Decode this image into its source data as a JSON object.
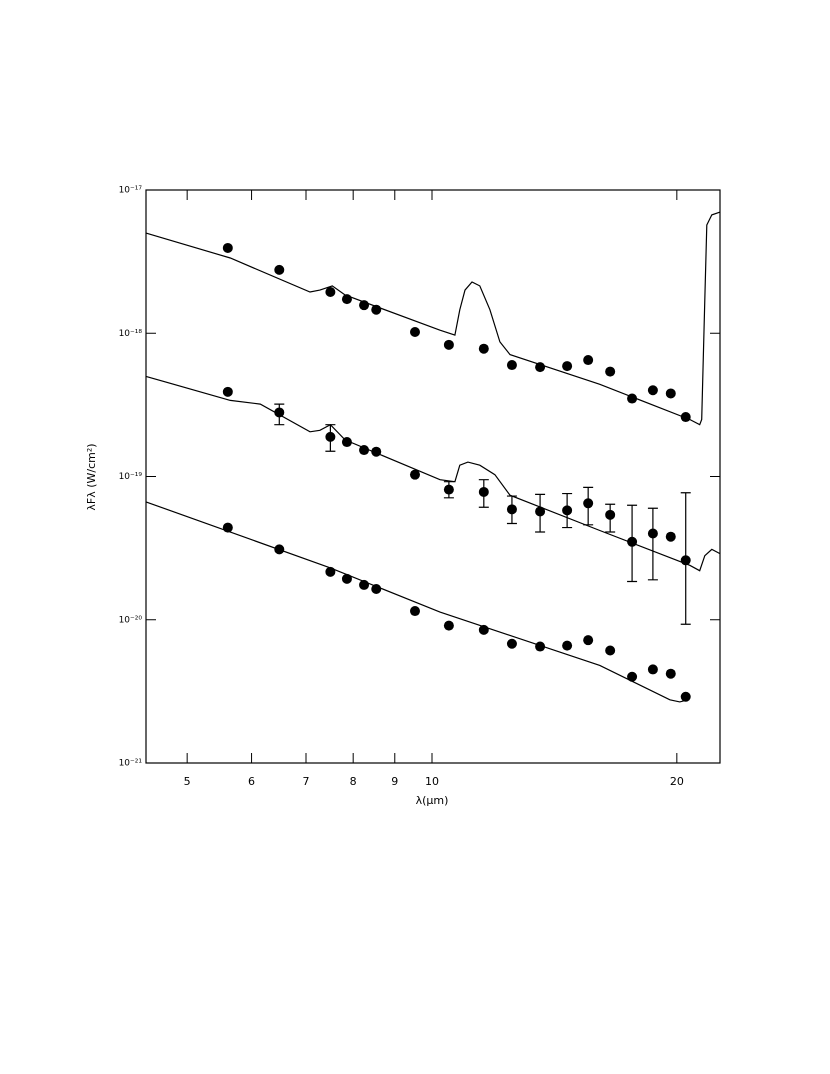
{
  "chart_data": {
    "type": "scatter",
    "x_label": "λ(μm)",
    "y_label": "λFλ (W/cm²)",
    "xscale": "log",
    "yscale": "log",
    "xlim": [
      4.45,
      22.6
    ],
    "ylim": [
      1e-21,
      1e-17
    ],
    "xticks": [
      5,
      6,
      7,
      8,
      9,
      10,
      20
    ],
    "yticks": [
      {
        "value": 1e-21,
        "label": "10⁻²¹"
      },
      {
        "value": 1e-20,
        "label": "10⁻²⁰"
      },
      {
        "value": 1e-19,
        "label": "10⁻¹⁹"
      },
      {
        "value": 1e-18,
        "label": "10⁻¹⁸"
      },
      {
        "value": 1e-17,
        "label": "10⁻¹⁷"
      }
    ],
    "color": "#000000",
    "x": [
      5.61,
      6.49,
      7.5,
      7.86,
      8.25,
      8.54,
      9.53,
      10.49,
      11.58,
      12.54,
      13.58,
      14.66,
      15.56,
      16.56,
      17.62,
      18.69,
      19.66,
      20.51
    ],
    "series": [
      {
        "values": [
          3.94e-18,
          2.77e-18,
          1.94e-18,
          1.73e-18,
          1.57e-18,
          1.46e-18,
          1.02e-18,
          8.3e-19,
          7.8e-19,
          6e-19,
          5.8e-19,
          5.9e-19,
          6.5e-19,
          5.4e-19,
          3.5e-19,
          4e-19,
          3.8e-19,
          2.6e-19
        ]
      },
      {
        "values": [
          3.9e-19,
          2.8e-19,
          1.89e-19,
          1.74e-19,
          1.53e-19,
          1.49e-19,
          1.03e-19,
          8.1e-20,
          7.8e-20,
          5.9e-20,
          5.7e-20,
          5.8e-20,
          6.5e-20,
          5.4e-20,
          3.5e-20,
          4e-20,
          3.8e-20,
          2.6e-20
        ],
        "error_low": [
          null,
          2.3e-19,
          1.5e-19,
          null,
          null,
          null,
          null,
          7.1e-20,
          6.1e-20,
          4.7e-20,
          4.1e-20,
          4.4e-20,
          4.6e-20,
          4.1e-20,
          1.85e-20,
          1.9e-20,
          null,
          9.3e-21
        ],
        "error_high": [
          null,
          3.2e-19,
          2.3e-19,
          null,
          null,
          null,
          null,
          9.2e-20,
          9.5e-20,
          7.3e-20,
          7.5e-20,
          7.6e-20,
          8.4e-20,
          6.4e-20,
          6.3e-20,
          6e-20,
          null,
          7.7e-20
        ]
      },
      {
        "values": [
          4.4e-20,
          3.1e-20,
          2.16e-20,
          1.93e-20,
          1.75e-20,
          1.64e-20,
          1.15e-20,
          9.1e-21,
          8.5e-21,
          6.8e-21,
          6.5e-21,
          6.6e-21,
          7.2e-21,
          6.1e-21,
          4e-21,
          4.5e-21,
          4.2e-21,
          2.9e-21
        ]
      }
    ],
    "models": [
      {
        "x": [
          4.45,
          5.65,
          7.08,
          7.28,
          7.54,
          7.82,
          10.23,
          10.67,
          10.82,
          10.98,
          11.2,
          11.45,
          11.78,
          12.12,
          12.47,
          16.08,
          20.75,
          21.34,
          21.46,
          21.65,
          21.77,
          22.08,
          22.58
        ],
        "values": [
          5e-18,
          3.35e-18,
          1.94e-18,
          2e-18,
          2.14e-18,
          1.85e-18,
          1.05e-18,
          9.7e-19,
          1.46e-18,
          2e-18,
          2.28e-18,
          2.14e-18,
          1.46e-18,
          8.7e-19,
          7.1e-19,
          4.4e-19,
          2.5e-19,
          2.3e-19,
          2.5e-19,
          1.71e-18,
          5.7e-18,
          6.7e-18,
          7e-18
        ]
      },
      {
        "x": [
          4.45,
          5.65,
          6.15,
          7.08,
          7.28,
          7.5,
          7.82,
          10.23,
          10.67,
          10.82,
          11.07,
          11.45,
          11.95,
          12.47,
          16.08,
          20.75,
          21.34,
          21.65,
          22.08,
          22.58
        ],
        "values": [
          5e-19,
          3.4e-19,
          3.2e-19,
          2.05e-19,
          2.1e-19,
          2.3e-19,
          1.8e-19,
          9.5e-20,
          9.2e-20,
          1.2e-19,
          1.26e-19,
          1.2e-19,
          1.03e-19,
          7.4e-20,
          4.2e-20,
          2.4e-20,
          2.2e-20,
          2.8e-20,
          3.1e-20,
          2.9e-20
        ]
      },
      {
        "x": [
          4.45,
          7.5,
          10.23,
          16.08,
          19.61,
          20.17,
          20.63
        ],
        "values": [
          6.65e-20,
          2.3e-20,
          1.13e-20,
          4.8e-21,
          2.76e-21,
          2.67e-21,
          2.76e-21
        ]
      }
    ]
  }
}
